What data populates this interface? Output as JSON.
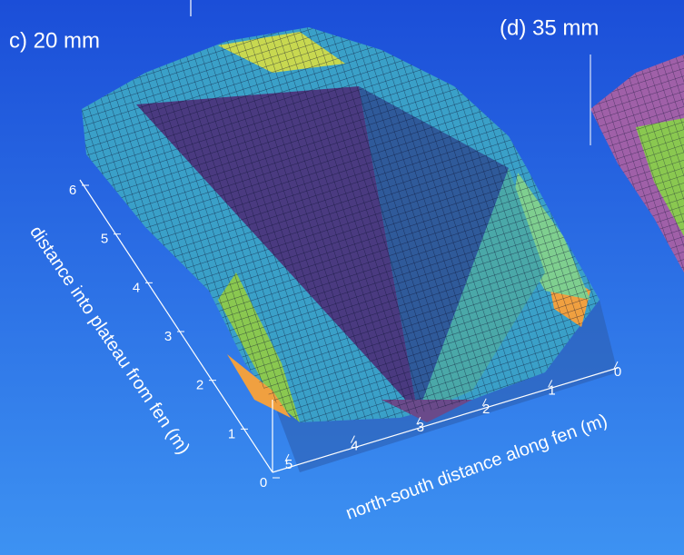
{
  "chart_data": [
    {
      "type": "surface",
      "title": "c) 20 mm",
      "xlabel": "north-south distance along fen (m)",
      "ylabel": "distance into plateau from fen (m)",
      "xlim": [
        0,
        5
      ],
      "xticks": [
        0,
        1,
        2,
        3,
        4,
        5
      ],
      "ylim": [
        0,
        6
      ],
      "yticks": [
        0,
        1,
        2,
        3,
        4,
        5,
        6
      ]
    },
    {
      "type": "surface",
      "title": "(d) 35 mm"
    }
  ]
}
